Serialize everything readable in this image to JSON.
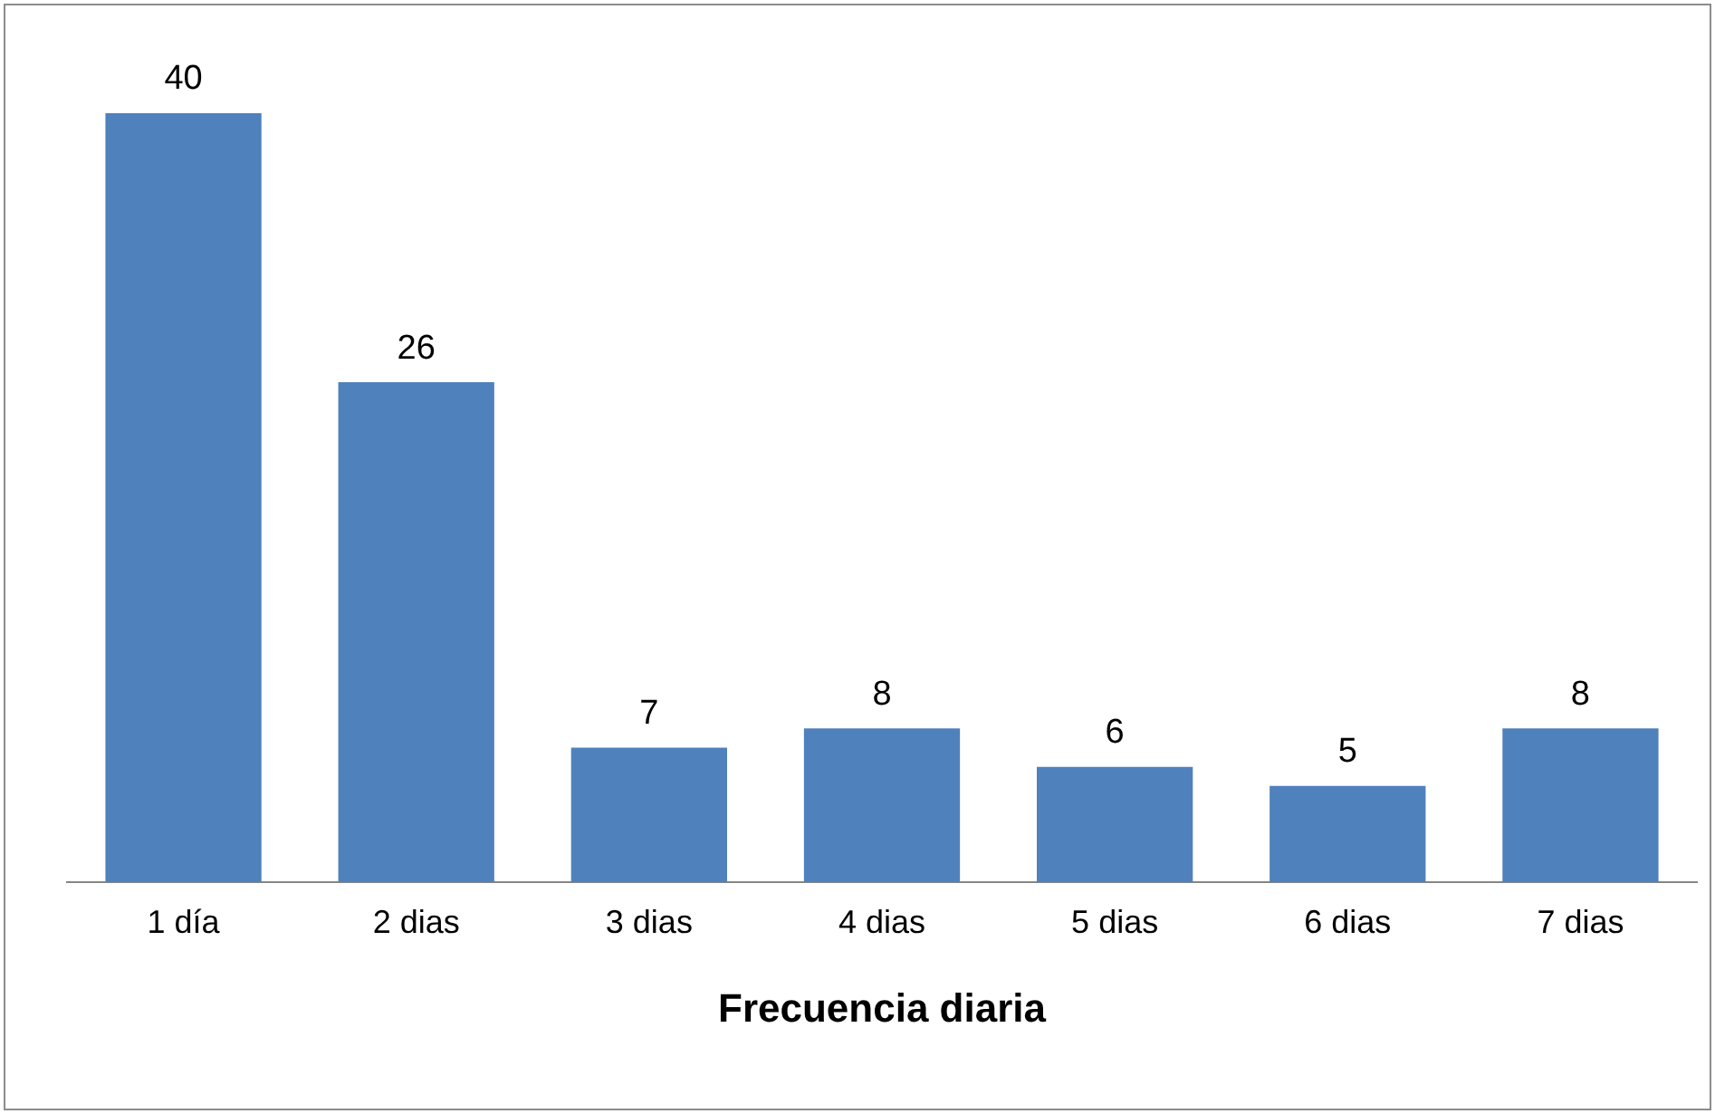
{
  "chart_data": {
    "type": "bar",
    "xlabel": "Frecuencia diaria",
    "categories": [
      "1 día",
      "2 dias",
      "3 dias",
      "4 dias",
      "5 dias",
      "6 dias",
      "7 dias"
    ],
    "values": [
      40,
      26,
      7,
      8,
      6,
      5,
      8
    ],
    "color": "#4f81bd",
    "data_labels": true,
    "grid": false,
    "legend": false
  }
}
